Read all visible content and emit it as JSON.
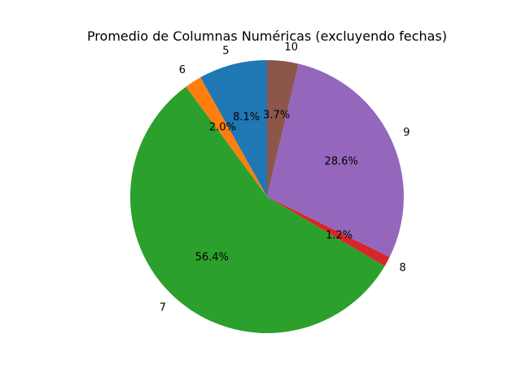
{
  "chart_data": {
    "type": "pie",
    "title": "Promedio de Columnas Numéricas (excluyendo fechas)",
    "start_angle": 90,
    "counterclockwise": true,
    "slices": [
      {
        "label": "5",
        "value": 8.1,
        "pct_label": "8.1%",
        "color": "#1f77b4"
      },
      {
        "label": "6",
        "value": 2.0,
        "pct_label": "2.0%",
        "color": "#ff7f0e"
      },
      {
        "label": "7",
        "value": 56.4,
        "pct_label": "56.4%",
        "color": "#2ca02c"
      },
      {
        "label": "8",
        "value": 1.2,
        "pct_label": "1.2%",
        "color": "#d62728"
      },
      {
        "label": "9",
        "value": 28.6,
        "pct_label": "28.6%",
        "color": "#9467bd"
      },
      {
        "label": "10",
        "value": 3.7,
        "pct_label": "3.7%",
        "color": "#8c564b"
      }
    ]
  }
}
